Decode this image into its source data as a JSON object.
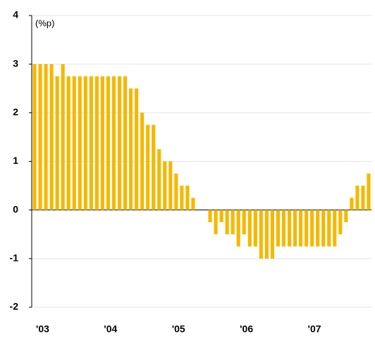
{
  "chart_data": {
    "type": "bar",
    "annotation": "(%p)",
    "categories": [
      "'03",
      null,
      null,
      null,
      null,
      null,
      null,
      null,
      null,
      null,
      null,
      null,
      "'04",
      null,
      null,
      null,
      null,
      null,
      null,
      null,
      null,
      null,
      null,
      null,
      "'05",
      null,
      null,
      null,
      null,
      null,
      null,
      null,
      null,
      null,
      null,
      null,
      "'06",
      null,
      null,
      null,
      null,
      null,
      null,
      null,
      null,
      null,
      null,
      null,
      "'07",
      null,
      null,
      null,
      null,
      null,
      null,
      null,
      null,
      null,
      null,
      null
    ],
    "values": [
      3,
      3,
      3,
      3,
      2.75,
      3,
      2.75,
      2.75,
      2.75,
      2.75,
      2.75,
      2.75,
      2.75,
      2.75,
      2.75,
      2.75,
      2.75,
      2.5,
      2.5,
      2,
      1.75,
      1.75,
      1.25,
      1,
      1,
      0.75,
      0.5,
      0.5,
      0.25,
      0,
      0,
      -0.25,
      -0.5,
      -0.25,
      -0.5,
      -0.5,
      -0.75,
      -0.5,
      -0.75,
      -0.75,
      -1,
      -1,
      -1,
      -0.75,
      -0.75,
      -0.75,
      -0.75,
      -0.75,
      -0.75,
      -0.75,
      -0.75,
      -0.75,
      -0.75,
      -0.75,
      -0.5,
      -0.25,
      0.25,
      0.5,
      0.5,
      0.75
    ],
    "color": "#f5b800",
    "ylim": [
      -2,
      4
    ],
    "yticks": [
      -2,
      -1,
      0,
      1,
      2,
      3,
      4
    ],
    "grid": true
  }
}
